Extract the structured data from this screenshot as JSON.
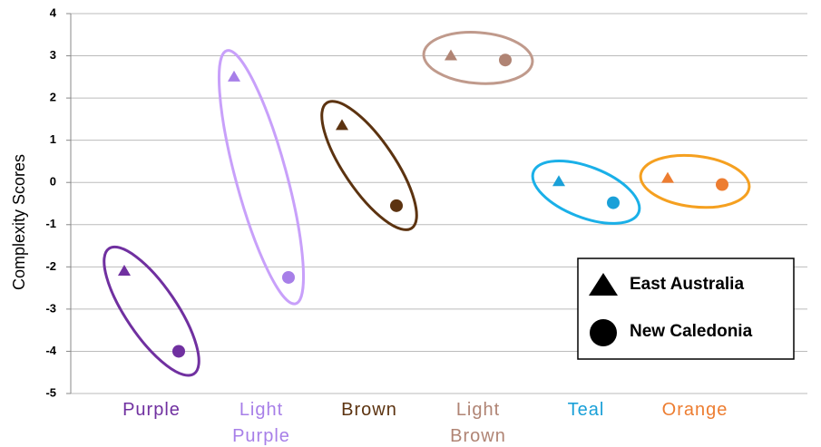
{
  "chart_data": {
    "type": "paired-scatter",
    "y_label": "Complexity Scores",
    "categories": [
      "Purple",
      "Light Purple",
      "Brown",
      "Light Brown",
      "Teal",
      "Orange"
    ],
    "colors": [
      "#7030a0",
      "#a77fe8",
      "#5c3310",
      "#b08474",
      "#1aa0d8",
      "#ed7d31"
    ],
    "ellipse_colors": [
      "#7030a0",
      "#c8a0fa",
      "#5c3310",
      "#c09a8c",
      "#1ab0e8",
      "#f5a020"
    ],
    "series": [
      {
        "name": "East Australia",
        "marker": "triangle",
        "values": [
          -2.1,
          2.5,
          1.35,
          3.0,
          0.02,
          0.1
        ]
      },
      {
        "name": "New Caledonia",
        "marker": "circle",
        "values": [
          -4.0,
          -2.25,
          -0.55,
          2.9,
          -0.48,
          -0.05
        ]
      }
    ],
    "ylim": [
      -5,
      4
    ],
    "yticks": [
      -5,
      -4,
      -3,
      -2,
      -1,
      0,
      1,
      2,
      3,
      4
    ],
    "grid": true,
    "legend": "lower right"
  }
}
